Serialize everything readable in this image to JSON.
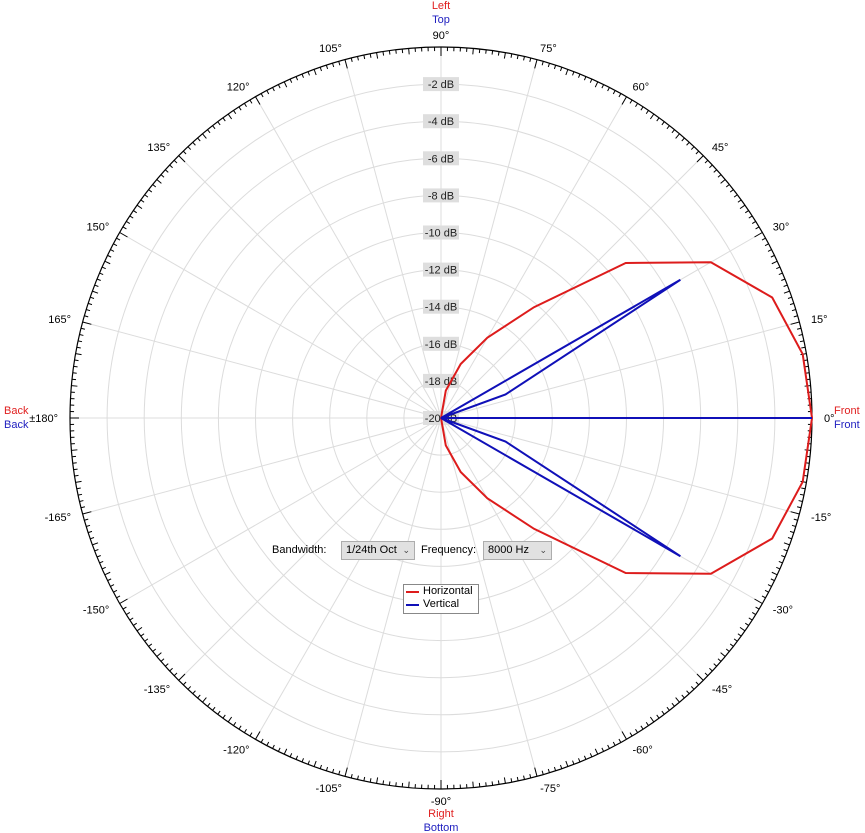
{
  "chart_data": {
    "type": "polar-line",
    "radial_axis": {
      "unit": "dB",
      "range": [
        -20,
        0
      ],
      "ring_labels": [
        "-2 dB",
        "-4 dB",
        "-6 dB",
        "-8 dB",
        "-10 dB",
        "-12 dB",
        "-14 dB",
        "-16 dB",
        "-18 dB",
        "-20 dB"
      ],
      "ring_values": [
        -2,
        -4,
        -6,
        -8,
        -10,
        -12,
        -14,
        -16,
        -18,
        -20
      ]
    },
    "angular_axis": {
      "tick_labels": [
        "0°",
        "15°",
        "30°",
        "45°",
        "60°",
        "75°",
        "90°",
        "105°",
        "120°",
        "135°",
        "150°",
        "165°",
        "±180°",
        "-165°",
        "-150°",
        "-135°",
        "-120°",
        "-105°",
        "-90°",
        "-75°",
        "-60°",
        "-45°",
        "-30°",
        "-15°"
      ],
      "tick_values": [
        0,
        15,
        30,
        45,
        60,
        75,
        90,
        105,
        120,
        135,
        150,
        165,
        180,
        -165,
        -150,
        -135,
        -120,
        -105,
        -90,
        -75,
        -60,
        -45,
        -30,
        -15
      ],
      "minor_tick_step_deg": 1
    },
    "direction_labels": {
      "top": [
        {
          "text": "Left",
          "color": "#e02020"
        },
        {
          "text": "Top",
          "color": "#2020c0"
        }
      ],
      "bottom": [
        {
          "text": "Right",
          "color": "#e02020"
        },
        {
          "text": "Bottom",
          "color": "#2020c0"
        }
      ],
      "left": [
        {
          "text": "Back",
          "color": "#e02020"
        },
        {
          "text": "Back",
          "color": "#2020c0"
        }
      ],
      "right": [
        {
          "text": "Front",
          "color": "#e02020"
        },
        {
          "text": "Front",
          "color": "#2020c0"
        }
      ]
    },
    "angles": [
      -180,
      -170,
      -160,
      -150,
      -140,
      -130,
      -120,
      -110,
      -100,
      -90,
      -80,
      -70,
      -60,
      -50,
      -40,
      -30,
      -20,
      -10,
      0,
      10,
      20,
      30,
      40,
      50,
      60,
      70,
      80,
      90,
      100,
      110,
      120,
      130,
      140,
      150,
      160,
      170,
      180
    ],
    "series": [
      {
        "name": "Horizontal",
        "color": "#dd1c1c",
        "values": [
          -20,
          -20,
          -20,
          -20,
          -20,
          -20,
          -20,
          -20,
          -20,
          -20,
          -18.5,
          -16.9,
          -15,
          -12.2,
          -7,
          -3.2,
          -1,
          -0.2,
          0,
          -0.2,
          -1,
          -3.2,
          -7,
          -12.2,
          -15,
          -16.9,
          -18.5,
          -20,
          -20,
          -20,
          -20,
          -20,
          -20,
          -20,
          -20,
          -20,
          -20
        ]
      },
      {
        "name": "Vertical",
        "color": "#1010b8",
        "values": [
          -20,
          -20,
          -20,
          -20,
          -20,
          -20,
          -20,
          -20,
          -20,
          -20,
          -20,
          -20,
          -20,
          -20,
          -20,
          -5.1,
          -16.3,
          -20,
          0,
          -20,
          -16.3,
          -5.1,
          -20,
          -20,
          -20,
          -20,
          -20,
          -20,
          -20,
          -20,
          -20,
          -20,
          -20,
          -20,
          -20,
          -20,
          -20
        ]
      }
    ],
    "grid": true,
    "legend_position": "center-bottom"
  },
  "controls": {
    "bandwidth_label": "Bandwidth:",
    "bandwidth_value": "1/24th Oct",
    "frequency_label": "Frequency:",
    "frequency_value": "8000 Hz",
    "chevron_icon": "chevron-down-icon"
  }
}
